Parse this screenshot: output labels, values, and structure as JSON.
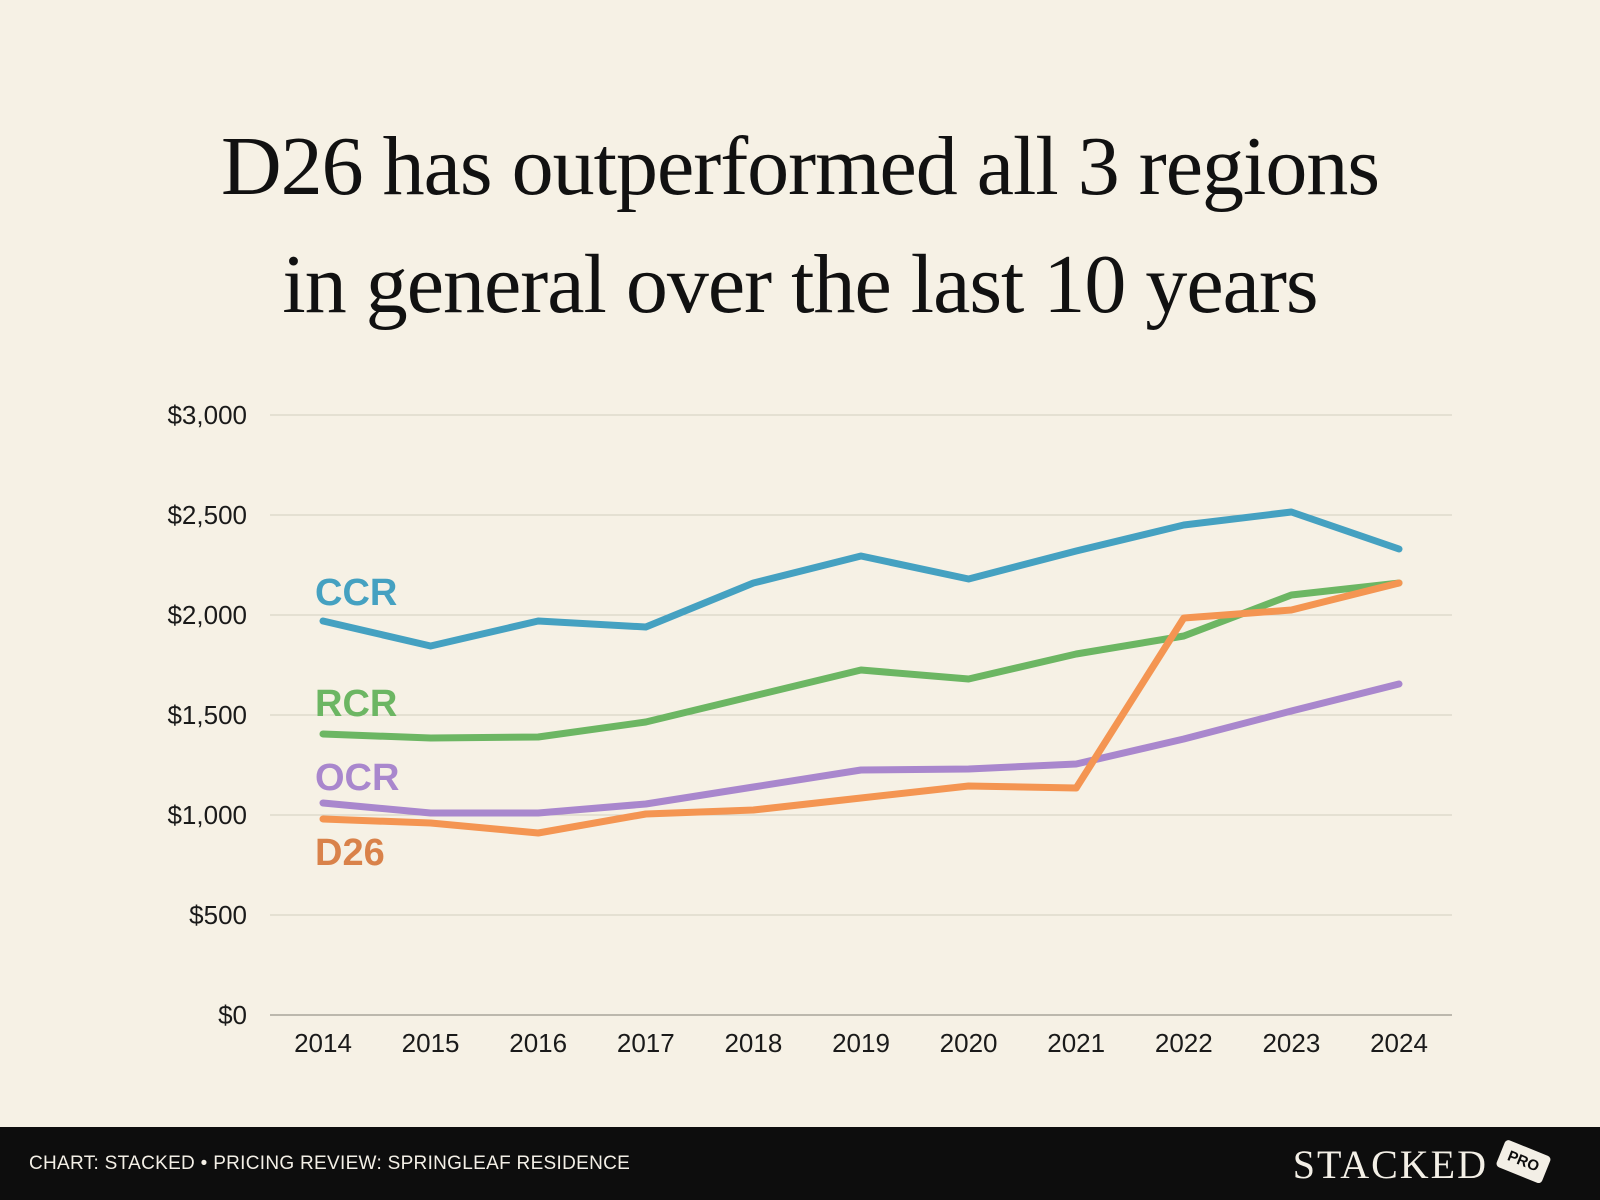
{
  "chart_data": {
    "type": "line",
    "title": [
      "D26 has outperformed all 3 regions",
      "in general over the last 10 years"
    ],
    "xlabel": "",
    "ylabel": "",
    "categories": [
      "2014",
      "2015",
      "2016",
      "2017",
      "2018",
      "2019",
      "2020",
      "2021",
      "2022",
      "2023",
      "2024"
    ],
    "ylim": [
      0,
      3000
    ],
    "yticks": [
      0,
      500,
      1000,
      1500,
      2000,
      2500,
      3000
    ],
    "ytick_labels": [
      "$0",
      "$500",
      "$1,000",
      "$1,500",
      "$2,000",
      "$2,500",
      "$3,000"
    ],
    "grid": true,
    "series": [
      {
        "name": "CCR",
        "color": "#45a1c1",
        "values": [
          1970,
          1845,
          1970,
          1940,
          2160,
          2295,
          2180,
          2320,
          2450,
          2515,
          2330
        ]
      },
      {
        "name": "RCR",
        "color": "#6cb663",
        "values": [
          1405,
          1385,
          1390,
          1465,
          1595,
          1725,
          1680,
          1805,
          1895,
          2100,
          2160
        ]
      },
      {
        "name": "OCR",
        "color": "#a987cd",
        "values": [
          1060,
          1010,
          1010,
          1055,
          1140,
          1225,
          1230,
          1255,
          1380,
          1520,
          1655
        ]
      },
      {
        "name": "D26",
        "color": "#f49552",
        "label_color": "#d9824a",
        "values": [
          980,
          960,
          910,
          1005,
          1025,
          1085,
          1145,
          1135,
          1985,
          2025,
          2160
        ]
      }
    ]
  },
  "footer": {
    "credit": "CHART: STACKED • PRICING REVIEW: SPRINGLEAF RESIDENCE",
    "logo": "STACKED",
    "badge": "PRO"
  }
}
